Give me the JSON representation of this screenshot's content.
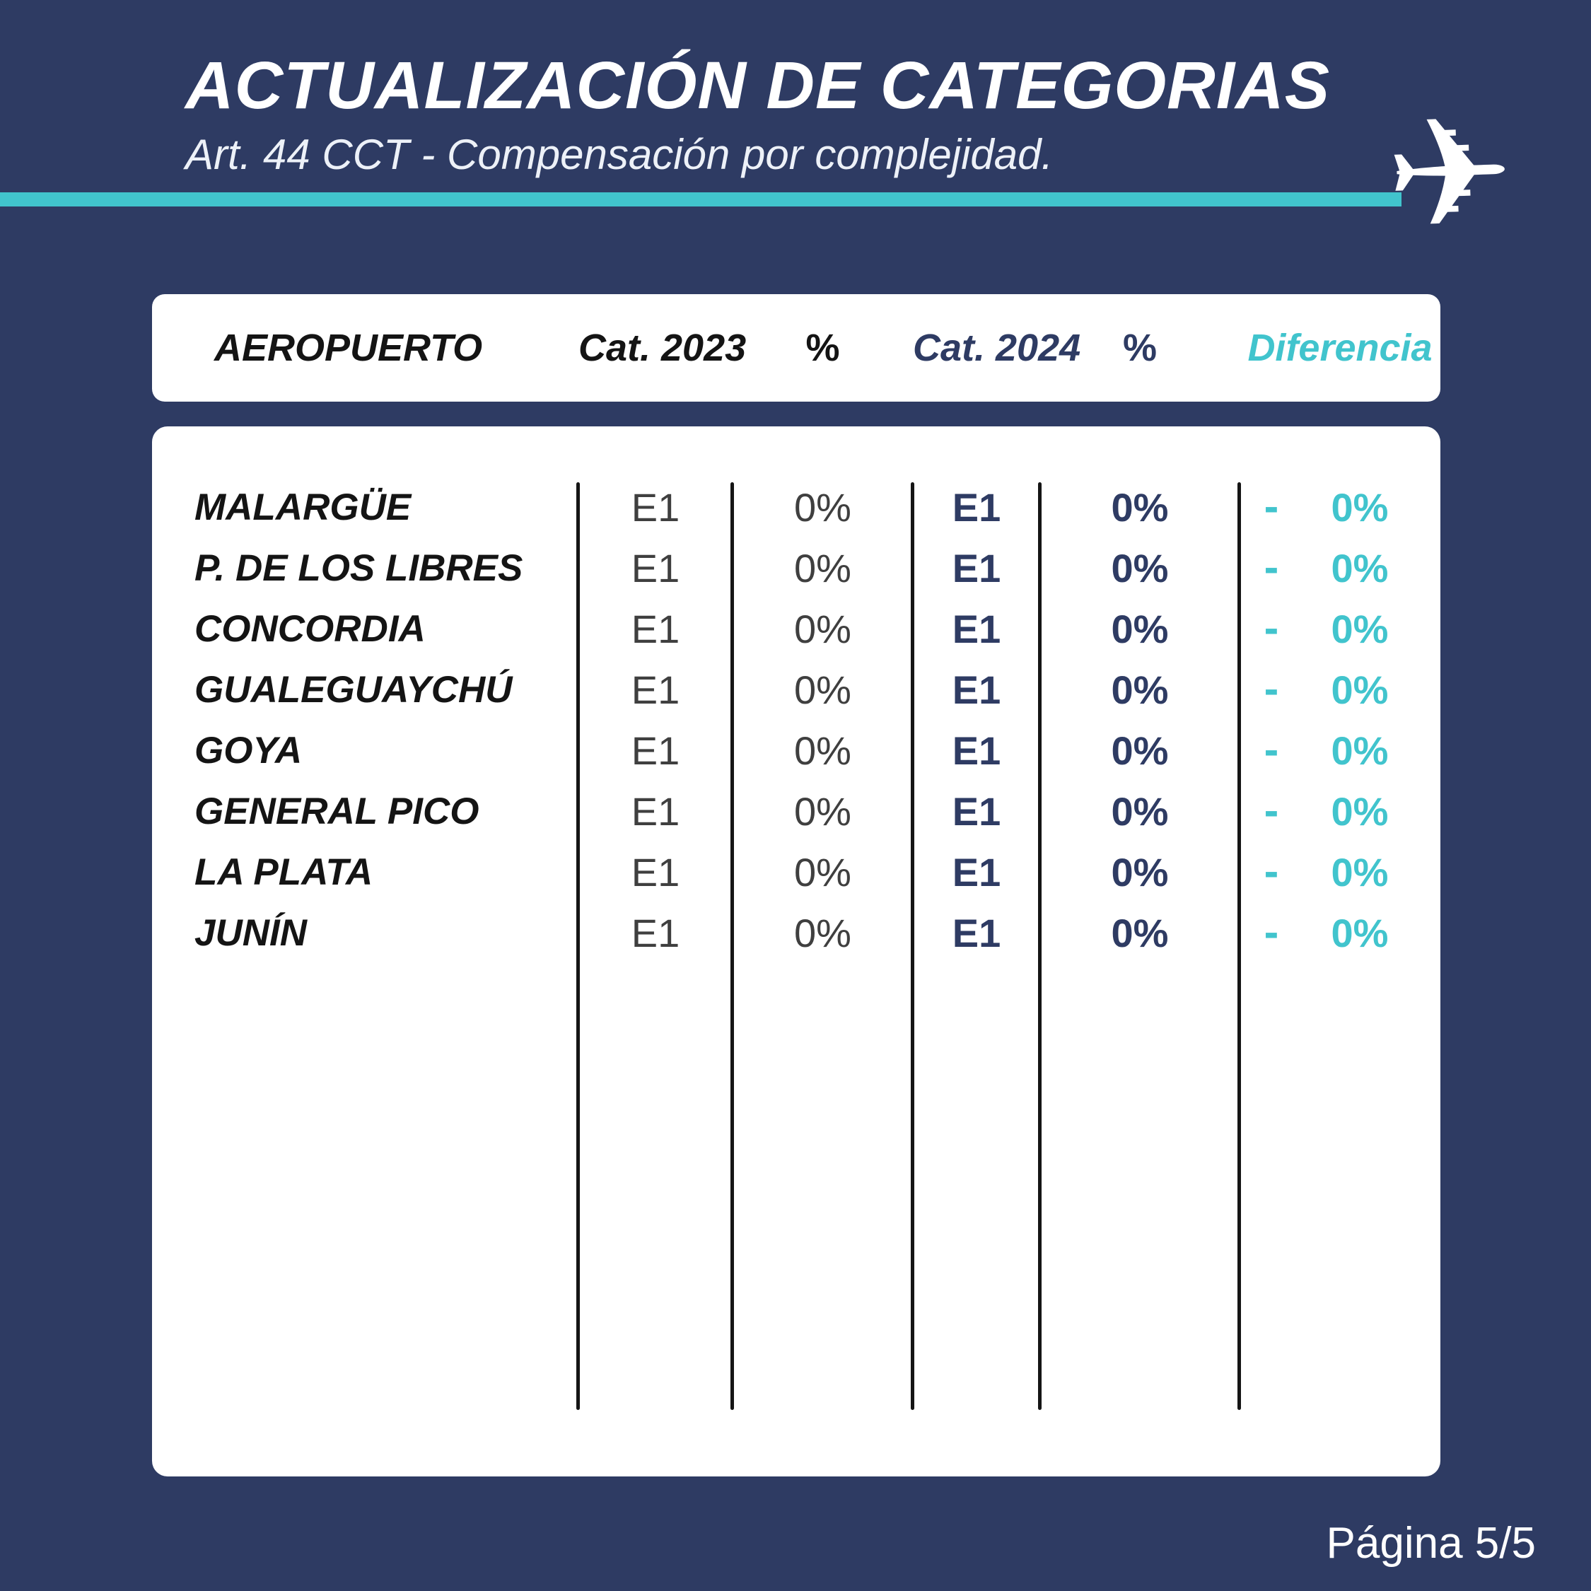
{
  "header": {
    "title": "ACTUALIZACIÓN DE CATEGORIAS",
    "subtitle": "Art. 44 CCT - Compensación por complejidad."
  },
  "icons": {
    "airplane": "✈"
  },
  "colors": {
    "background": "#2E3B63",
    "accent": "#41C4CD",
    "navy": "#2E3B63",
    "gray": "#3F3F3F",
    "black": "#141414",
    "card": "#FFFFFF"
  },
  "table": {
    "columns": {
      "airport": "AEROPUERTO",
      "cat2023": "Cat. 2023",
      "pct2023": "%",
      "cat2024": "Cat. 2024",
      "pct2024": "%",
      "diff": "Diferencia"
    },
    "rows": [
      {
        "airport": "MALARGÜE",
        "cat2023": "E1",
        "pct2023": "0%",
        "cat2024": "E1",
        "pct2024": "0%",
        "diff_sign": "-",
        "diff_value": "0%"
      },
      {
        "airport": "P. DE LOS LIBRES",
        "cat2023": "E1",
        "pct2023": "0%",
        "cat2024": "E1",
        "pct2024": "0%",
        "diff_sign": "-",
        "diff_value": "0%"
      },
      {
        "airport": "CONCORDIA",
        "cat2023": "E1",
        "pct2023": "0%",
        "cat2024": "E1",
        "pct2024": "0%",
        "diff_sign": "-",
        "diff_value": "0%"
      },
      {
        "airport": "GUALEGUAYCHÚ",
        "cat2023": "E1",
        "pct2023": "0%",
        "cat2024": "E1",
        "pct2024": "0%",
        "diff_sign": "-",
        "diff_value": "0%"
      },
      {
        "airport": "GOYA",
        "cat2023": "E1",
        "pct2023": "0%",
        "cat2024": "E1",
        "pct2024": "0%",
        "diff_sign": "-",
        "diff_value": "0%"
      },
      {
        "airport": "GENERAL PICO",
        "cat2023": "E1",
        "pct2023": "0%",
        "cat2024": "E1",
        "pct2024": "0%",
        "diff_sign": "-",
        "diff_value": "0%"
      },
      {
        "airport": "LA PLATA",
        "cat2023": "E1",
        "pct2023": "0%",
        "cat2024": "E1",
        "pct2024": "0%",
        "diff_sign": "-",
        "diff_value": "0%"
      },
      {
        "airport": "JUNÍN",
        "cat2023": "E1",
        "pct2023": "0%",
        "cat2024": "E1",
        "pct2024": "0%",
        "diff_sign": "-",
        "diff_value": "0%"
      }
    ]
  },
  "footer": {
    "page_indicator": "Página 5/5"
  }
}
